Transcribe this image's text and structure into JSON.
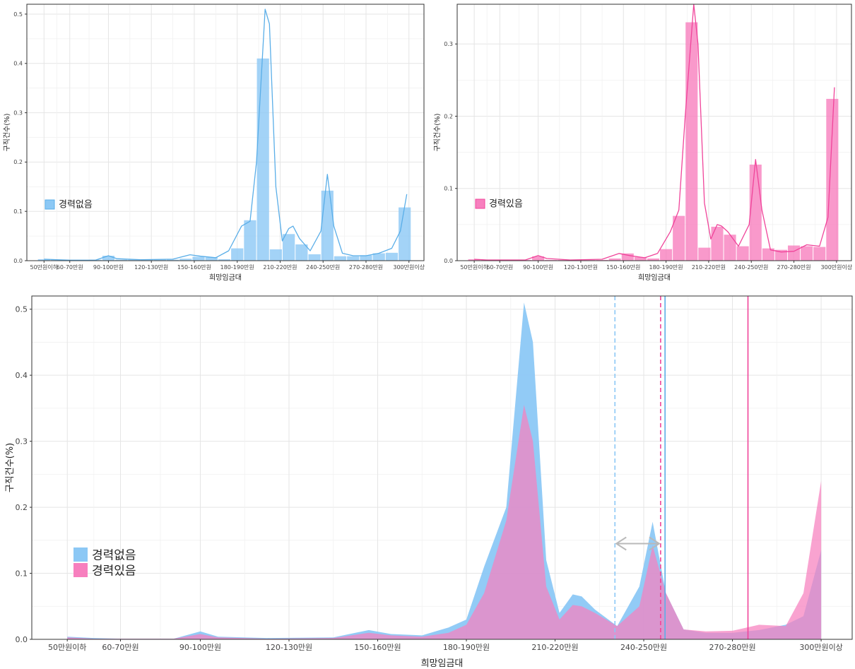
{
  "colors": {
    "blue": "#5aaee8",
    "blue_fill": "#8cc8f5",
    "pink": "#f0449a",
    "pink_fill": "#f77fbe",
    "overlap": "#b85cb8",
    "grid": "#e5e5e5",
    "arrow": "#b9b9b9"
  },
  "chart_data": [
    {
      "id": "top-left",
      "type": "bar",
      "title": "",
      "xlabel": "희망임금대",
      "ylabel": "구직건수(%)",
      "ylim": [
        0,
        0.52
      ],
      "yticks": [
        0.0,
        0.1,
        0.2,
        0.3,
        0.4,
        0.5
      ],
      "tick_labels": [
        "50만원이하",
        "60-70만원",
        "90-100만원",
        "120-130만원",
        "150-160만원",
        "180-190만원",
        "210-220만원",
        "240-250만원",
        "270-280만원",
        "300만원이상"
      ],
      "tick_positions": [
        0,
        1.2,
        3,
        5,
        7,
        9,
        11,
        13,
        15,
        17
      ],
      "legend": [
        "경력없음"
      ],
      "legend_position": "left",
      "grid": true,
      "series": [
        {
          "bars_x": [
            0,
            0.6,
            1.2,
            1.8,
            2.4,
            3.0,
            3.6,
            4.2,
            4.8,
            5.4,
            6.0,
            6.6,
            7.2,
            7.8,
            8.4,
            9.0,
            9.6,
            10.2,
            10.8,
            11.4,
            12.0,
            12.6,
            13.2,
            13.8,
            14.4,
            15.0,
            15.6,
            16.2,
            16.8
          ],
          "bars_y": [
            0.003,
            0.002,
            0.001,
            0.001,
            0.002,
            0.01,
            0.002,
            0.002,
            0.002,
            0.002,
            0.002,
            0.004,
            0.008,
            0.007,
            0.003,
            0.025,
            0.082,
            0.41,
            0.023,
            0.054,
            0.033,
            0.013,
            0.142,
            0.009,
            0.009,
            0.011,
            0.015,
            0.016,
            0.108
          ],
          "density_x": [
            0,
            0.6,
            1.2,
            2.4,
            3.0,
            3.4,
            4.5,
            6.0,
            6.8,
            7.3,
            8.0,
            8.6,
            9.2,
            9.6,
            9.9,
            10.3,
            10.5,
            10.8,
            11.1,
            11.4,
            11.6,
            11.9,
            12.4,
            12.9,
            13.2,
            13.5,
            13.9,
            14.4,
            15.0,
            15.6,
            16.2,
            16.6,
            16.9
          ],
          "density_y": [
            0.003,
            0.002,
            0.001,
            0.001,
            0.01,
            0.004,
            0.002,
            0.003,
            0.012,
            0.009,
            0.006,
            0.02,
            0.07,
            0.08,
            0.2,
            0.51,
            0.48,
            0.15,
            0.04,
            0.065,
            0.07,
            0.045,
            0.02,
            0.06,
            0.175,
            0.07,
            0.015,
            0.01,
            0.01,
            0.015,
            0.025,
            0.06,
            0.135
          ]
        }
      ]
    },
    {
      "id": "top-right",
      "type": "bar",
      "title": "",
      "xlabel": "희망임금대",
      "ylabel": "구직건수(%)",
      "ylim": [
        0,
        0.355
      ],
      "yticks": [
        0.0,
        0.1,
        0.2,
        0.3
      ],
      "tick_labels": [
        "50만원이하",
        "60-70만원",
        "90-100만원",
        "120-130만원",
        "150-160만원",
        "180-190만원",
        "210-220만원",
        "240-250만원",
        "270-280만원",
        "300만원이상"
      ],
      "tick_positions": [
        0,
        1.2,
        3,
        5,
        7,
        9,
        11,
        13,
        15,
        17
      ],
      "legend": [
        "경력있음"
      ],
      "legend_position": "left",
      "grid": true,
      "series": [
        {
          "bars_x": [
            0,
            0.6,
            1.2,
            1.8,
            2.4,
            3.0,
            3.6,
            4.2,
            4.8,
            5.4,
            6.0,
            6.6,
            7.2,
            7.8,
            8.4,
            9.0,
            9.6,
            10.2,
            10.8,
            11.4,
            12.0,
            12.6,
            13.2,
            13.8,
            14.4,
            15.0,
            15.6,
            16.2,
            16.8
          ],
          "bars_y": [
            0.002,
            0.001,
            0.001,
            0.001,
            0.001,
            0.006,
            0.001,
            0.001,
            0.001,
            0.001,
            0.001,
            0.003,
            0.01,
            0.005,
            0.003,
            0.016,
            0.062,
            0.33,
            0.018,
            0.047,
            0.036,
            0.02,
            0.133,
            0.017,
            0.015,
            0.021,
            0.02,
            0.019,
            0.224
          ],
          "density_x": [
            0,
            0.6,
            1.2,
            2.4,
            3.0,
            3.4,
            4.5,
            6.0,
            6.8,
            7.3,
            8.0,
            8.6,
            9.2,
            9.6,
            9.9,
            10.3,
            10.5,
            10.8,
            11.1,
            11.4,
            11.6,
            11.9,
            12.4,
            12.9,
            13.2,
            13.5,
            13.9,
            14.4,
            15.0,
            15.6,
            16.2,
            16.6,
            16.9
          ],
          "density_y": [
            0.002,
            0.001,
            0.001,
            0.001,
            0.007,
            0.003,
            0.001,
            0.002,
            0.01,
            0.007,
            0.004,
            0.01,
            0.04,
            0.07,
            0.2,
            0.355,
            0.3,
            0.08,
            0.03,
            0.05,
            0.048,
            0.04,
            0.02,
            0.05,
            0.14,
            0.07,
            0.015,
            0.012,
            0.013,
            0.022,
            0.02,
            0.06,
            0.24
          ]
        }
      ]
    },
    {
      "id": "bottom",
      "type": "area",
      "title": "",
      "xlabel": "희망임금대",
      "ylabel": "구직건수(%)",
      "ylim": [
        0,
        0.52
      ],
      "yticks": [
        0.0,
        0.1,
        0.2,
        0.3,
        0.4,
        0.5
      ],
      "tick_labels": [
        "50만원이하",
        "60-70만원",
        "90-100만원",
        "120-130만원",
        "150-160만원",
        "180-190만원",
        "210-220만원",
        "240-250만원",
        "270-280만원",
        "300만원이상"
      ],
      "tick_positions": [
        0,
        1.2,
        3,
        5,
        7,
        9,
        11,
        13,
        15,
        17
      ],
      "legend": [
        "경력없음",
        "경력있음"
      ],
      "legend_position": "left",
      "grid": true,
      "vlines": [
        {
          "x": 12.35,
          "color": "#8cc8f5",
          "dashed": true
        },
        {
          "x": 13.38,
          "color": "#f0449a",
          "dashed": true
        },
        {
          "x": 13.48,
          "color": "#5aaee8",
          "dashed": false
        },
        {
          "x": 15.35,
          "color": "#f0449a",
          "dashed": false
        }
      ],
      "arrow": {
        "x1": 12.35,
        "x2": 13.38,
        "y": 0.145
      },
      "series": [
        {
          "name": "경력없음",
          "x": [
            0,
            0.6,
            1.2,
            2.4,
            3.0,
            3.4,
            4.5,
            6.0,
            6.8,
            7.3,
            8.0,
            8.6,
            9.0,
            9.4,
            9.9,
            10.3,
            10.5,
            10.8,
            11.1,
            11.4,
            11.6,
            11.9,
            12.4,
            12.9,
            13.2,
            13.5,
            13.9,
            14.4,
            15.0,
            15.6,
            16.2,
            16.6,
            17.0
          ],
          "y": [
            0.004,
            0.002,
            0.001,
            0.001,
            0.012,
            0.004,
            0.002,
            0.003,
            0.014,
            0.008,
            0.006,
            0.018,
            0.03,
            0.11,
            0.2,
            0.51,
            0.45,
            0.12,
            0.04,
            0.068,
            0.065,
            0.045,
            0.02,
            0.08,
            0.178,
            0.07,
            0.015,
            0.01,
            0.01,
            0.014,
            0.022,
            0.035,
            0.135
          ]
        },
        {
          "name": "경력있음",
          "x": [
            0,
            0.6,
            1.2,
            2.4,
            3.0,
            3.4,
            4.5,
            6.0,
            6.8,
            7.3,
            8.0,
            8.6,
            9.0,
            9.4,
            9.9,
            10.3,
            10.5,
            10.8,
            11.1,
            11.4,
            11.6,
            11.9,
            12.4,
            12.9,
            13.2,
            13.5,
            13.9,
            14.4,
            15.0,
            15.6,
            16.2,
            16.6,
            17.0
          ],
          "y": [
            0.003,
            0.001,
            0.001,
            0.001,
            0.008,
            0.003,
            0.001,
            0.002,
            0.01,
            0.006,
            0.004,
            0.01,
            0.022,
            0.07,
            0.18,
            0.355,
            0.3,
            0.08,
            0.03,
            0.052,
            0.05,
            0.04,
            0.02,
            0.05,
            0.142,
            0.07,
            0.015,
            0.012,
            0.013,
            0.022,
            0.02,
            0.07,
            0.24
          ]
        }
      ]
    }
  ]
}
